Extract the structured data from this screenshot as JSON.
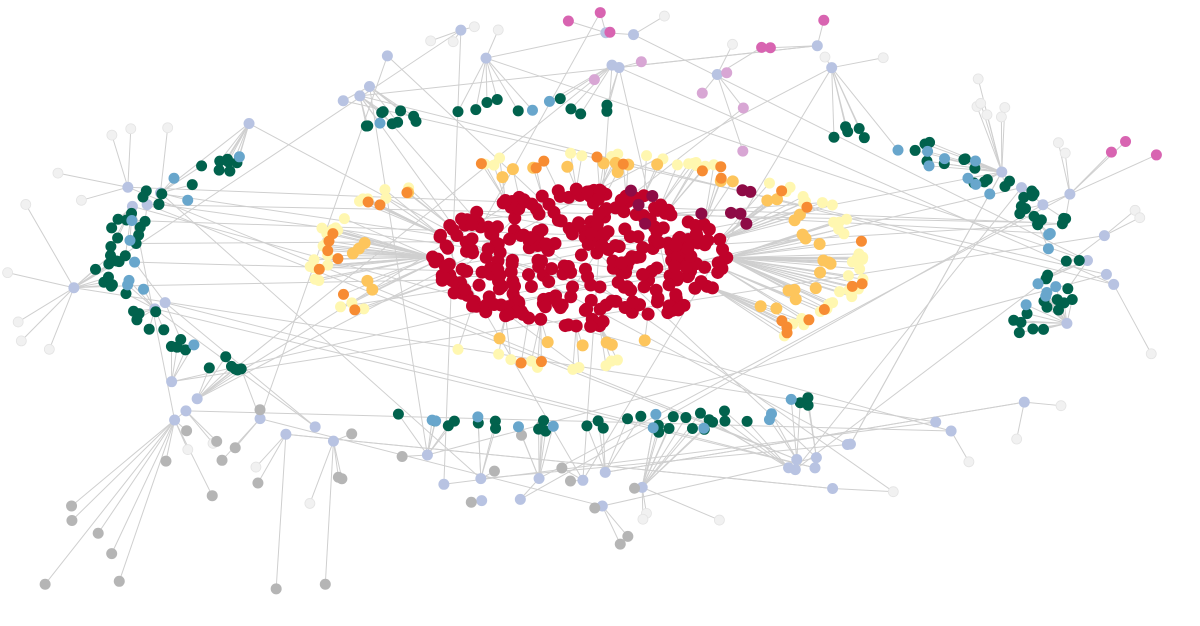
{
  "diagram": {
    "type": "network-graph",
    "layout": "concentric-rings",
    "directed": true,
    "background": "#ffffff",
    "edge_color": "#cfcfcf",
    "text_labels": []
  },
  "groups": [
    {
      "id": "core",
      "color": "#c0022a",
      "ring": "center",
      "count": 320
    },
    {
      "id": "core-dark",
      "color": "#8e0b46",
      "ring": "center-top",
      "count": 10
    },
    {
      "id": "ring2-yellow",
      "color": "#fff7b0",
      "ring": "inner",
      "count": 90
    },
    {
      "id": "ring2-gold",
      "color": "#fdc55c",
      "ring": "inner",
      "count": 40
    },
    {
      "id": "ring2-orange",
      "color": "#f78c33",
      "ring": "inner",
      "count": 30
    },
    {
      "id": "ring3-green",
      "color": "#01624d",
      "ring": "middle",
      "count": 150
    },
    {
      "id": "ring3-blue",
      "color": "#68a6cc",
      "ring": "middle",
      "count": 40
    },
    {
      "id": "outer-lavender",
      "color": "#b8c3e2",
      "ring": "outer",
      "count": 60
    },
    {
      "id": "magenta",
      "color": "#d864b1",
      "ring": "top-satellite",
      "count": 9
    },
    {
      "id": "pink-light",
      "color": "#d8a6d4",
      "ring": "top-satellite",
      "count": 6
    },
    {
      "id": "gray",
      "color": "#b5b5b5",
      "ring": "scattered",
      "count": 30
    },
    {
      "id": "ghost",
      "color": "#f1f1f1",
      "ring": "outer-edge",
      "count": 40
    }
  ]
}
